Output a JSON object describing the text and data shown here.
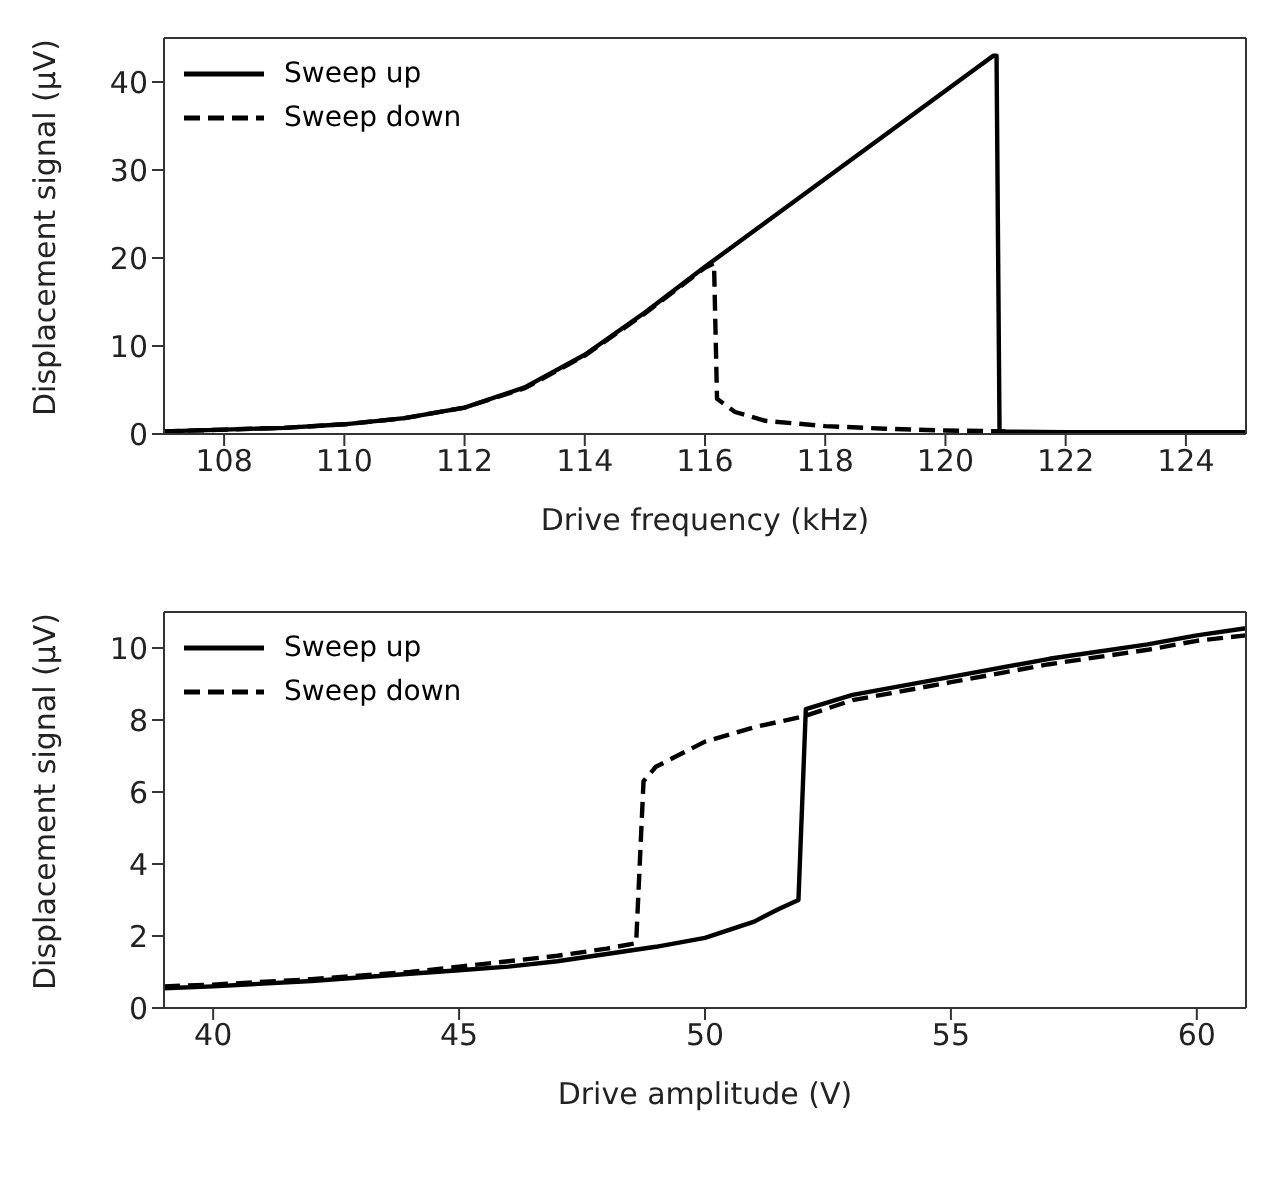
{
  "chart_data": [
    {
      "type": "line",
      "xlabel": "Drive frequency (kHz)",
      "ylabel": "Displacement signal (μV)",
      "xlim": [
        107,
        125
      ],
      "xticks": [
        108,
        110,
        112,
        114,
        116,
        118,
        120,
        122,
        124
      ],
      "ylim": [
        0,
        45
      ],
      "yticks": [
        0,
        10,
        20,
        30,
        40
      ],
      "legend": "top left",
      "series": [
        {
          "name": "Sweep up",
          "color": "#000000",
          "line_style": "solid",
          "x": [
            107,
            108,
            109,
            110,
            111,
            112,
            113,
            114,
            115,
            116,
            117,
            118,
            119,
            120,
            120.5,
            120.8,
            120.85,
            120.9,
            122,
            125
          ],
          "values": [
            0.3,
            0.5,
            0.7,
            1.1,
            1.8,
            3.0,
            5.3,
            9.0,
            13.8,
            19.0,
            24.0,
            29.0,
            34.0,
            39.0,
            41.5,
            43,
            43,
            0.3,
            0.2,
            0.2
          ]
        },
        {
          "name": "Sweep down",
          "color": "#000000",
          "line_style": "dashed",
          "x": [
            107,
            108,
            109,
            110,
            111,
            112,
            113,
            114,
            115,
            116,
            116.15,
            116.2,
            116.5,
            117,
            118,
            119,
            120,
            121
          ],
          "values": [
            0.3,
            0.5,
            0.7,
            1.1,
            1.8,
            3.0,
            5.2,
            8.9,
            13.7,
            18.9,
            19.4,
            4.0,
            2.5,
            1.5,
            0.9,
            0.6,
            0.4,
            0.3
          ]
        }
      ]
    },
    {
      "type": "line",
      "xlabel": "Drive amplitude (V)",
      "ylabel": "Displacement signal (μV)",
      "xlim": [
        39,
        61
      ],
      "xticks": [
        40,
        45,
        50,
        55,
        60
      ],
      "ylim": [
        0,
        11
      ],
      "yticks": [
        0,
        2,
        4,
        6,
        8,
        10
      ],
      "legend": "top left",
      "series": [
        {
          "name": "Sweep up",
          "color": "#000000",
          "line_style": "solid",
          "x": [
            39,
            40,
            42,
            44,
            45,
            46,
            47,
            48,
            49,
            50,
            51,
            51.5,
            51.9,
            52.05,
            53,
            55,
            57,
            59,
            60,
            61
          ],
          "values": [
            0.55,
            0.6,
            0.75,
            0.95,
            1.05,
            1.15,
            1.3,
            1.5,
            1.7,
            1.95,
            2.4,
            2.75,
            3.0,
            8.3,
            8.7,
            9.2,
            9.7,
            10.1,
            10.35,
            10.55
          ]
        },
        {
          "name": "Sweep down",
          "color": "#000000",
          "line_style": "dashed",
          "x": [
            39,
            40,
            42,
            44,
            45,
            46,
            47,
            48,
            48.6,
            48.75,
            49,
            50,
            51,
            52,
            53,
            55,
            57,
            59,
            60,
            61
          ],
          "values": [
            0.6,
            0.65,
            0.8,
            1.0,
            1.15,
            1.3,
            1.45,
            1.65,
            1.8,
            6.3,
            6.7,
            7.4,
            7.8,
            8.1,
            8.55,
            9.05,
            9.55,
            9.95,
            10.2,
            10.35
          ]
        }
      ]
    }
  ]
}
